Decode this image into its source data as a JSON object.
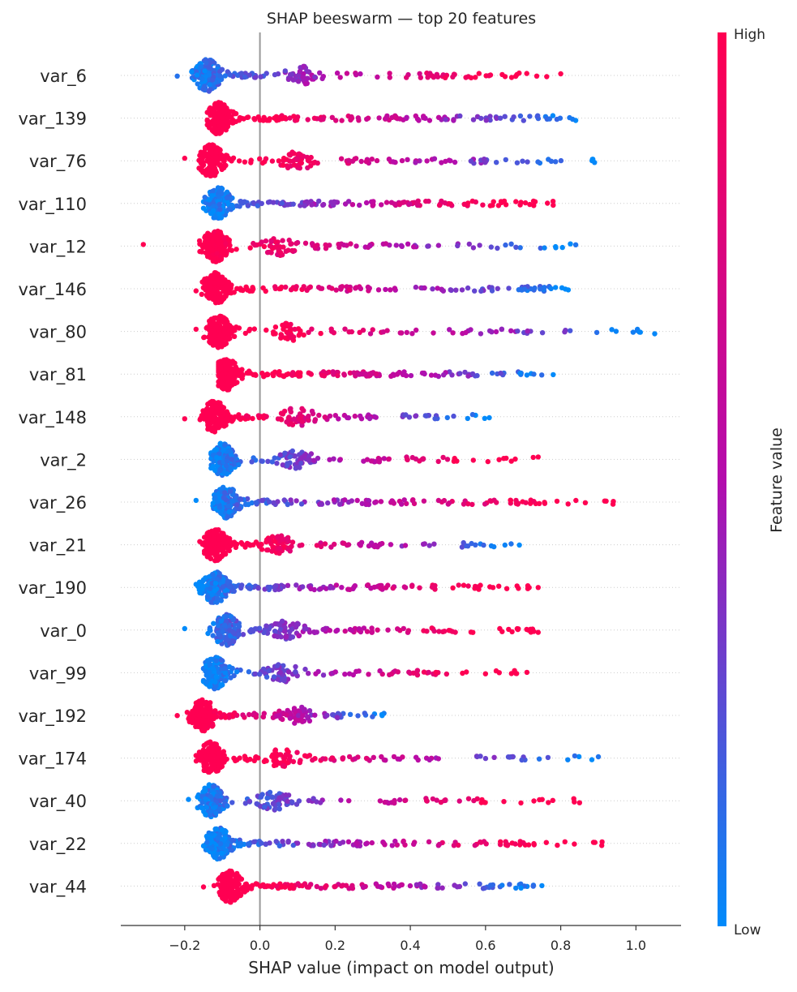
{
  "chart_data": {
    "type": "scatter",
    "subtype": "shap-beeswarm",
    "title": "SHAP beeswarm — top 20 features",
    "xlabel": "SHAP value (impact on model output)",
    "xlim": [
      -0.37,
      1.12
    ],
    "xticks": [
      "−0.2",
      "0.0",
      "0.2",
      "0.4",
      "0.6",
      "0.8",
      "1.0"
    ],
    "xtick_values": [
      -0.2,
      0.0,
      0.2,
      0.4,
      0.6,
      0.8,
      1.0
    ],
    "zero_line": 0.0,
    "grid": "dotted-per-feature",
    "colorbar": {
      "label": "Feature value",
      "high_label": "High",
      "low_label": "Low",
      "high_color": "#ff0052",
      "mid_color": "#b40dad",
      "low_color": "#008bfb"
    },
    "features": [
      {
        "name": "var_6",
        "min": -0.22,
        "max": 0.8,
        "mode": -0.14,
        "high_side": "right",
        "mode2": 0.11
      },
      {
        "name": "var_139",
        "min": -0.14,
        "max": 0.84,
        "mode": -0.11,
        "high_side": "left"
      },
      {
        "name": "var_76",
        "min": -0.2,
        "max": 0.89,
        "mode": -0.13,
        "high_side": "left",
        "mode2": 0.1
      },
      {
        "name": "var_110",
        "min": -0.15,
        "max": 0.78,
        "mode": -0.11,
        "high_side": "right"
      },
      {
        "name": "var_12",
        "min": -0.31,
        "max": 0.84,
        "mode": -0.12,
        "high_side": "left",
        "mode2": 0.05
      },
      {
        "name": "var_146",
        "min": -0.17,
        "max": 0.82,
        "mode": -0.12,
        "high_side": "left"
      },
      {
        "name": "var_80",
        "min": -0.17,
        "max": 1.05,
        "mode": -0.11,
        "high_side": "left",
        "mode2": 0.08
      },
      {
        "name": "var_81",
        "min": -0.11,
        "max": 0.78,
        "mode": -0.09,
        "high_side": "left"
      },
      {
        "name": "var_148",
        "min": -0.2,
        "max": 0.61,
        "mode": -0.12,
        "high_side": "left",
        "mode2": 0.1
      },
      {
        "name": "var_2",
        "min": -0.13,
        "max": 0.74,
        "mode": -0.1,
        "high_side": "right",
        "mode2": 0.1
      },
      {
        "name": "var_26",
        "min": -0.17,
        "max": 0.94,
        "mode": -0.09,
        "high_side": "right"
      },
      {
        "name": "var_21",
        "min": -0.16,
        "max": 0.69,
        "mode": -0.12,
        "high_side": "left",
        "mode2": 0.05
      },
      {
        "name": "var_190",
        "min": -0.17,
        "max": 0.74,
        "mode": -0.12,
        "high_side": "right"
      },
      {
        "name": "var_0",
        "min": -0.2,
        "max": 0.74,
        "mode": -0.09,
        "high_side": "right",
        "mode2": 0.07
      },
      {
        "name": "var_99",
        "min": -0.15,
        "max": 0.71,
        "mode": -0.12,
        "high_side": "right",
        "mode2": 0.06
      },
      {
        "name": "var_192",
        "min": -0.22,
        "max": 0.33,
        "mode": -0.15,
        "high_side": "left",
        "mode2": 0.1
      },
      {
        "name": "var_174",
        "min": -0.17,
        "max": 0.9,
        "mode": -0.13,
        "high_side": "left",
        "mode2": 0.06
      },
      {
        "name": "var_40",
        "min": -0.19,
        "max": 0.85,
        "mode": -0.13,
        "high_side": "right",
        "mode2": 0.04
      },
      {
        "name": "var_22",
        "min": -0.15,
        "max": 0.91,
        "mode": -0.11,
        "high_side": "right"
      },
      {
        "name": "var_44",
        "min": -0.15,
        "max": 0.75,
        "mode": -0.08,
        "high_side": "left"
      }
    ]
  }
}
